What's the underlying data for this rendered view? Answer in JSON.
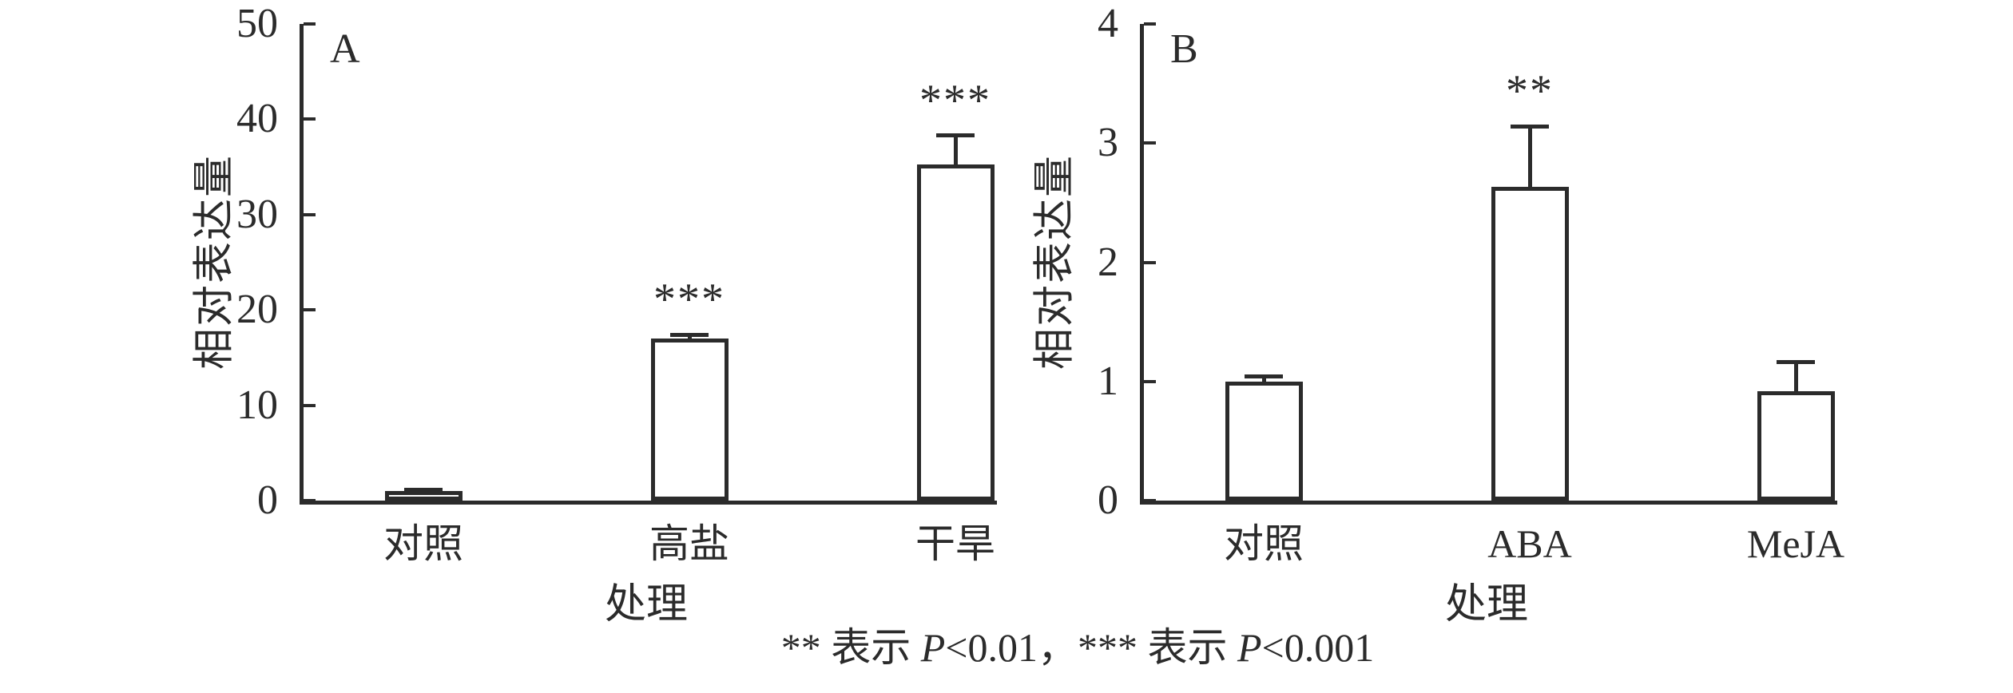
{
  "colors": {
    "ink": "#2b2b2b",
    "background": "#ffffff",
    "bar_fill": "#ffffff"
  },
  "chart_data": [
    {
      "type": "bar",
      "panel_label": "A",
      "xlabel": "处理",
      "ylabel": "相对表达量",
      "ylim": [
        0,
        50
      ],
      "yticks": [
        0,
        10,
        20,
        30,
        40,
        50
      ],
      "categories": [
        "对照",
        "高盐",
        "干旱"
      ],
      "values": [
        1.0,
        17.0,
        35.3
      ],
      "error_up": [
        0.1,
        0.4,
        3.0
      ],
      "significance": [
        "",
        "***",
        "***"
      ],
      "grid": false,
      "legend": "none",
      "bar_fill": "#ffffff",
      "bar_edge": "#2b2b2b"
    },
    {
      "type": "bar",
      "panel_label": "B",
      "xlabel": "处理",
      "ylabel": "相对表达量",
      "ylim": [
        0,
        4
      ],
      "yticks": [
        0,
        1,
        2,
        3,
        4
      ],
      "categories": [
        "对照",
        "ABA",
        "MeJA"
      ],
      "values": [
        1.0,
        2.63,
        0.92
      ],
      "error_up": [
        0.04,
        0.51,
        0.24
      ],
      "significance": [
        "",
        "**",
        ""
      ],
      "grid": false,
      "legend": "none",
      "bar_fill": "#ffffff",
      "bar_edge": "#2b2b2b"
    }
  ],
  "footer": {
    "parts": [
      "** 表示 ",
      "P",
      "<0.01，*** 表示 ",
      "P",
      "<0.001"
    ]
  }
}
